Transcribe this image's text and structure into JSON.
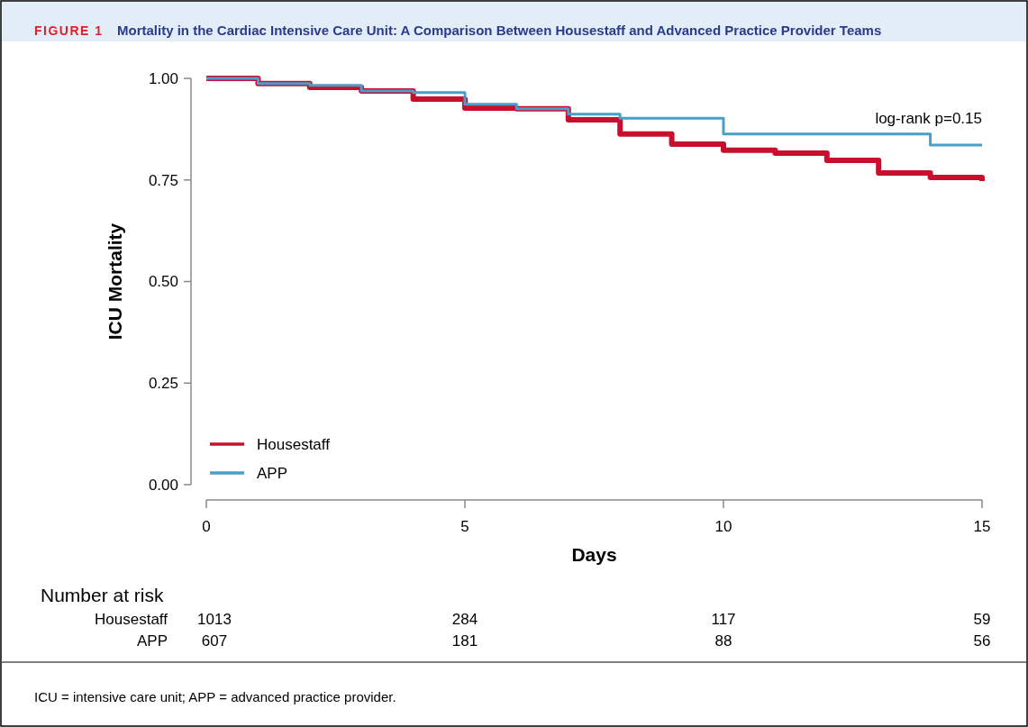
{
  "chart_data": {
    "type": "step",
    "title": "Mortality in the Cardiac Intensive Care Unit: A Comparison Between Housestaff and Advanced Practice Provider Teams",
    "xlabel": "Days",
    "ylabel": "ICU Mortality",
    "xlim": [
      0,
      15
    ],
    "xticks": [
      0,
      5,
      10,
      15
    ],
    "ylim": [
      0,
      1
    ],
    "yticks": [
      {
        "value": 0,
        "label": "0.00"
      },
      {
        "value": 0.25,
        "label": "0.25"
      },
      {
        "value": 0.5,
        "label": "0.50"
      },
      {
        "value": 0.75,
        "label": "0.75"
      },
      {
        "value": 1,
        "label": "1.00"
      }
    ],
    "grid": false,
    "legend": "bottom left",
    "line_style": "solid",
    "marker": "none",
    "series": [
      {
        "name": "Housestaff",
        "color": "#c8102e",
        "x": [
          0,
          1,
          2,
          3,
          4,
          5,
          6,
          7,
          8,
          9,
          10,
          11,
          12,
          13,
          14,
          15,
          15
        ],
        "values": [
          1.0,
          0.987,
          0.978,
          0.969,
          0.949,
          0.927,
          0.925,
          0.898,
          0.863,
          0.838,
          0.823,
          0.816,
          0.798,
          0.767,
          0.756,
          0.756,
          0.747
        ]
      },
      {
        "name": "APP",
        "color": "#4a9fc8",
        "x": [
          0,
          1,
          2,
          3,
          4,
          5,
          6,
          7,
          8,
          10,
          14,
          15
        ],
        "values": [
          1.0,
          0.987,
          0.983,
          0.969,
          0.965,
          0.936,
          0.925,
          0.912,
          0.902,
          0.863,
          0.836,
          0.836
        ]
      }
    ],
    "annotations": [
      "FIGURE 1",
      "log-rank p=0.15",
      "Number at risk",
      "Housestaff",
      "1013",
      "284",
      "117",
      "59",
      "APP",
      "607",
      "181",
      "88",
      "56",
      "ICU = intensive care unit; APP = advanced practice provider."
    ]
  }
}
